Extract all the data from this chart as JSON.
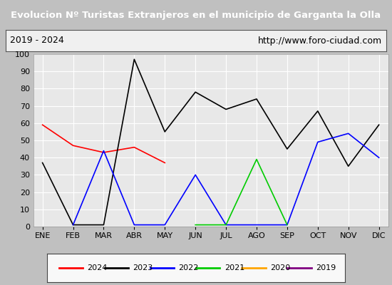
{
  "title": "Evolucion Nº Turistas Extranjeros en el municipio de Garganta la Olla",
  "subtitle_left": "2019 - 2024",
  "subtitle_right": "http://www.foro-ciudad.com",
  "months": [
    "ENE",
    "FEB",
    "MAR",
    "ABR",
    "MAY",
    "JUN",
    "JUL",
    "AGO",
    "SEP",
    "OCT",
    "NOV",
    "DIC"
  ],
  "series": {
    "2024": {
      "color": "#ff0000",
      "data": [
        59,
        47,
        43,
        46,
        37,
        null,
        null,
        null,
        null,
        null,
        null,
        null
      ]
    },
    "2023": {
      "color": "#000000",
      "data": [
        37,
        1,
        1,
        97,
        55,
        78,
        68,
        74,
        45,
        67,
        35,
        59
      ]
    },
    "2022": {
      "color": "#0000ff",
      "data": [
        null,
        1,
        44,
        1,
        1,
        30,
        1,
        1,
        1,
        49,
        54,
        40
      ]
    },
    "2021": {
      "color": "#00cc00",
      "data": [
        null,
        null,
        null,
        null,
        null,
        1,
        1,
        39,
        1,
        null,
        null,
        null
      ]
    },
    "2020": {
      "color": "#ffa500",
      "data": [
        null,
        null,
        null,
        null,
        null,
        null,
        null,
        null,
        null,
        null,
        null,
        null
      ]
    },
    "2019": {
      "color": "#800080",
      "data": [
        null,
        null,
        null,
        null,
        null,
        null,
        null,
        null,
        null,
        null,
        null,
        null
      ]
    }
  },
  "ylim": [
    0,
    100
  ],
  "yticks": [
    0,
    10,
    20,
    30,
    40,
    50,
    60,
    70,
    80,
    90,
    100
  ],
  "title_bg_color": "#4472c4",
  "title_text_color": "#ffffff",
  "subtitle_bg_color": "#f0f0f0",
  "plot_bg_color": "#e8e8e8",
  "fig_bg_color": "#c0c0c0",
  "grid_color": "#ffffff",
  "legend_order": [
    "2024",
    "2023",
    "2022",
    "2021",
    "2020",
    "2019"
  ]
}
